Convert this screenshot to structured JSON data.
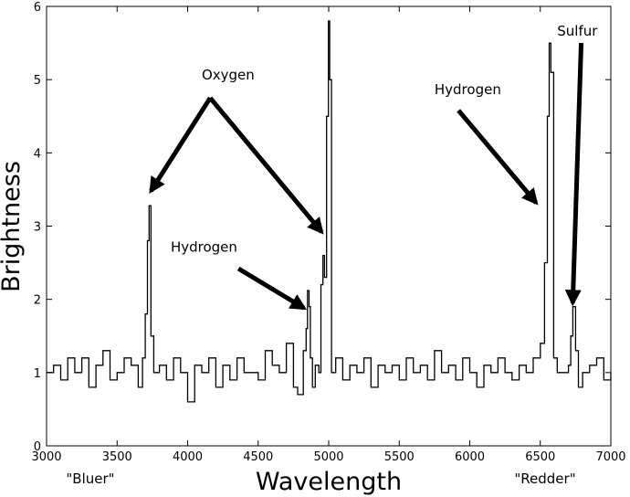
{
  "chart_data": {
    "type": "line",
    "title": "",
    "xlabel": "Wavelength",
    "ylabel": "Brightness",
    "xlim": [
      3000,
      7000
    ],
    "ylim": [
      0,
      6
    ],
    "x_ticks": [
      3000,
      3500,
      4000,
      4500,
      5000,
      5500,
      6000,
      6500,
      7000
    ],
    "y_ticks": [
      0,
      1,
      2,
      3,
      4,
      5,
      6
    ],
    "x_tick_labels": [
      "3000",
      "3500",
      "4000",
      "4500",
      "5000",
      "5500",
      "6000",
      "6500",
      "7000"
    ],
    "y_tick_labels": [
      "0",
      "1",
      "2",
      "3",
      "4",
      "5",
      "6"
    ],
    "grid": false,
    "line_color": "#000000",
    "arrow_color": "#000000",
    "axis_end_labels": {
      "left": "\"Bluer\"",
      "right": "\"Redder\""
    },
    "series": [
      {
        "x": [
          3000,
          3050,
          3100,
          3150,
          3200,
          3250,
          3300,
          3350,
          3400,
          3450,
          3500,
          3550,
          3600,
          3650,
          3680,
          3700,
          3715,
          3727,
          3740,
          3760,
          3800,
          3850,
          3900,
          3950,
          4000,
          4050,
          4100,
          4150,
          4200,
          4250,
          4300,
          4350,
          4400,
          4450,
          4500,
          4550,
          4600,
          4650,
          4700,
          4750,
          4780,
          4820,
          4840,
          4850,
          4861,
          4870,
          4885,
          4905,
          4930,
          4945,
          4959,
          4970,
          4985,
          4998,
          5007,
          5020,
          5050,
          5100,
          5150,
          5200,
          5250,
          5300,
          5350,
          5400,
          5450,
          5500,
          5550,
          5600,
          5650,
          5700,
          5750,
          5800,
          5850,
          5900,
          5950,
          6000,
          6050,
          6100,
          6150,
          6200,
          6250,
          6300,
          6350,
          6400,
          6450,
          6500,
          6530,
          6550,
          6563,
          6575,
          6595,
          6620,
          6700,
          6716,
          6731,
          6750,
          6770,
          6800,
          6850,
          6900,
          6950,
          7000
        ],
        "y": [
          1.0,
          1.1,
          0.9,
          1.2,
          1.0,
          1.2,
          0.8,
          1.1,
          1.3,
          0.9,
          1.0,
          1.2,
          1.1,
          0.8,
          1.2,
          1.8,
          2.8,
          3.28,
          1.5,
          1.0,
          1.1,
          0.9,
          1.2,
          1.0,
          0.6,
          1.1,
          1.0,
          1.2,
          0.8,
          1.1,
          0.9,
          1.2,
          1.0,
          1.0,
          0.9,
          1.3,
          1.1,
          1.0,
          1.4,
          0.8,
          0.7,
          1.3,
          1.6,
          2.12,
          1.9,
          1.2,
          0.8,
          1.1,
          1.0,
          2.2,
          2.6,
          2.3,
          4.5,
          5.8,
          5.0,
          1.0,
          1.2,
          0.9,
          1.1,
          1.0,
          1.2,
          0.8,
          1.1,
          1.0,
          1.1,
          0.9,
          1.2,
          1.0,
          1.1,
          0.9,
          1.3,
          1.0,
          1.1,
          0.9,
          1.2,
          1.0,
          0.8,
          1.1,
          1.0,
          1.2,
          1.0,
          0.9,
          1.1,
          1.0,
          1.2,
          1.4,
          2.5,
          4.5,
          5.5,
          5.1,
          1.2,
          1.0,
          1.1,
          1.5,
          1.9,
          1.3,
          0.8,
          1.0,
          1.1,
          1.2,
          0.9,
          1.0
        ]
      }
    ],
    "annotations": [
      {
        "text": "Oxygen",
        "text_x": 4100,
        "text_y": 5.0,
        "targets": [
          [
            3740,
            3.48
          ],
          [
            4950,
            2.92
          ]
        ],
        "tail": [
          4160,
          4.75
        ]
      },
      {
        "text": "Hydrogen",
        "text_x": 3880,
        "text_y": 2.65,
        "targets": [
          [
            4825,
            1.88
          ]
        ],
        "tail": [
          4360,
          2.42
        ]
      },
      {
        "text": "Hydrogen",
        "text_x": 5750,
        "text_y": 4.8,
        "targets": [
          [
            6470,
            3.32
          ]
        ],
        "tail": [
          5920,
          4.58
        ]
      },
      {
        "text": "Sulfur",
        "text_x": 6620,
        "text_y": 5.6,
        "targets": [
          [
            6730,
            1.95
          ]
        ],
        "tail": [
          6790,
          5.5
        ]
      }
    ]
  }
}
